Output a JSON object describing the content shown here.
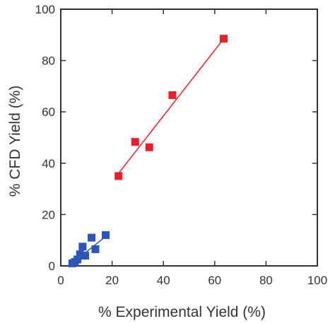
{
  "chart_data": {
    "type": "scatter",
    "xlabel": "% Experimental  Yield (%)",
    "ylabel": "% CFD Yield (%)",
    "xlim": [
      0,
      100
    ],
    "ylim": [
      0,
      100
    ],
    "xticks": [
      "0",
      "20",
      "40",
      "60",
      "80",
      "100"
    ],
    "yticks": [
      "0",
      "20",
      "40",
      "60",
      "80",
      "100"
    ],
    "grid": false,
    "legend": "none",
    "series": [
      {
        "color": "#e8202a",
        "marker": "square",
        "points": [
          {
            "x": 22.5,
            "y": 35.0
          },
          {
            "x": 29.0,
            "y": 48.3
          },
          {
            "x": 34.5,
            "y": 46.2
          },
          {
            "x": 43.5,
            "y": 66.5
          },
          {
            "x": 63.5,
            "y": 88.5
          }
        ],
        "fit_line": {
          "x": [
            22.5,
            63.5
          ],
          "y": [
            36.0,
            88.5
          ]
        }
      },
      {
        "color": "#2b55b8",
        "marker": "square",
        "points": [
          {
            "x": 4.5,
            "y": 1.0
          },
          {
            "x": 5.5,
            "y": 1.5
          },
          {
            "x": 6.5,
            "y": 2.5
          },
          {
            "x": 7.5,
            "y": 4.5
          },
          {
            "x": 8.5,
            "y": 7.5
          },
          {
            "x": 9.5,
            "y": 4.0
          },
          {
            "x": 12.0,
            "y": 11.0
          },
          {
            "x": 13.5,
            "y": 6.5
          },
          {
            "x": 17.5,
            "y": 12.0
          }
        ],
        "fit_line": {
          "x": [
            4.5,
            17.5
          ],
          "y": [
            1.0,
            11.5
          ]
        }
      }
    ]
  }
}
